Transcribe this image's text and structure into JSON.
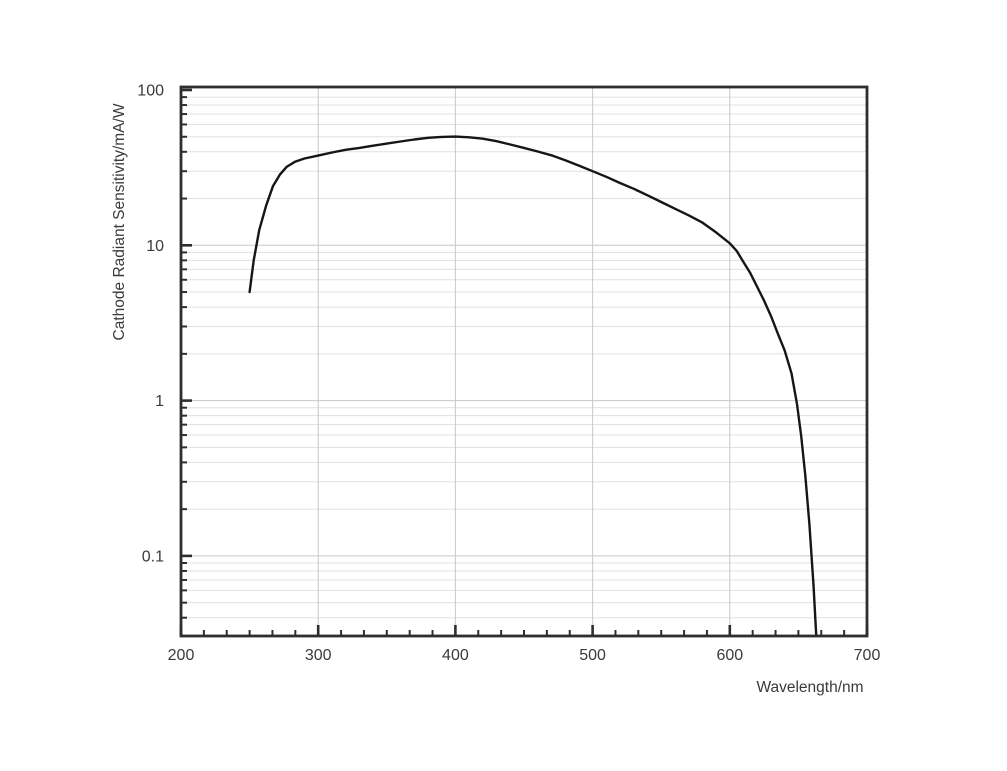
{
  "chart_data": {
    "type": "line",
    "title": "",
    "xlabel": "Wavelength/nm",
    "ylabel": "Cathode Radiant Sensitivity/mA/W",
    "x_tick_labels": [
      "200",
      "300",
      "400",
      "500",
      "600",
      "700"
    ],
    "x_tick_values": [
      200,
      300,
      400,
      500,
      600,
      700
    ],
    "y_tick_labels": [
      "100",
      "10",
      "1",
      "0.1"
    ],
    "y_tick_values": [
      100,
      10,
      1,
      0.1
    ],
    "xlim": [
      200,
      700
    ],
    "ylim": [
      0.03,
      100
    ],
    "x_scale": "linear",
    "y_scale": "log",
    "x_minor_divisions": 6,
    "y_minor_mantissas": [
      2,
      3,
      4,
      5,
      6,
      7,
      8,
      9
    ],
    "grid": {
      "horizontal_minor": true,
      "horizontal_major": true,
      "vertical_major": true,
      "vertical_minor": false
    },
    "legend": "none",
    "series": [
      {
        "name": "cathode radiant sensitivity",
        "x": [
          250,
          253,
          257,
          262,
          267,
          272,
          277,
          283,
          290,
          300,
          310,
          320,
          330,
          340,
          350,
          360,
          370,
          380,
          390,
          400,
          410,
          420,
          430,
          440,
          450,
          460,
          470,
          480,
          490,
          500,
          510,
          520,
          530,
          540,
          550,
          560,
          570,
          580,
          590,
          600,
          605,
          610,
          615,
          620,
          625,
          630,
          635,
          640,
          645,
          649,
          652,
          655,
          658,
          661,
          663
        ],
        "y": [
          5.0,
          8.0,
          12.5,
          18,
          24,
          28.5,
          32,
          34.5,
          36.2,
          37.8,
          39.6,
          41.2,
          42.4,
          43.8,
          45.2,
          46.6,
          48.0,
          49.2,
          49.9,
          50.1,
          49.6,
          48.6,
          46.8,
          44.6,
          42.4,
          40.2,
          38.0,
          35.3,
          32.6,
          30.0,
          27.6,
          25.2,
          23.1,
          21.0,
          19.0,
          17.2,
          15.6,
          14.0,
          12.1,
          10.3,
          9.2,
          7.8,
          6.6,
          5.4,
          4.4,
          3.5,
          2.7,
          2.1,
          1.5,
          0.95,
          0.6,
          0.33,
          0.16,
          0.065,
          0.031
        ]
      }
    ],
    "colors": {
      "background": "#ffffff",
      "curve": "#161616",
      "axis": "#2e2e2e",
      "grid_minor": "#e0e0e0",
      "grid_major": "#c8c8c8",
      "text": "#3a3a3a"
    }
  }
}
